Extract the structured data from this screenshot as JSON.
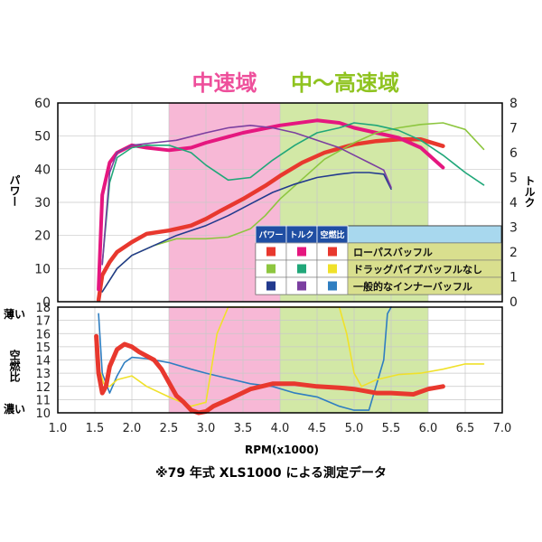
{
  "chart_data": {
    "type": "line",
    "regions": [
      {
        "label": "中速域",
        "from": 2.5,
        "to": 4.0,
        "color": "#f7b8d6",
        "label_color": "#ee4f9b"
      },
      {
        "label": "中〜高速域",
        "from": 4.0,
        "to": 6.0,
        "color": "#d2e8a6",
        "label_color": "#8fc31f"
      }
    ],
    "top_panel": {
      "ylabel": "パワー",
      "y2label": "トルク",
      "ylim": [
        0,
        60
      ],
      "y2lim": [
        0,
        8
      ],
      "yticks": [
        "0",
        "10",
        "20",
        "30",
        "40",
        "50",
        "60"
      ],
      "y2ticks": [
        "0",
        "1",
        "2",
        "3",
        "4",
        "5",
        "6",
        "7",
        "8"
      ],
      "series": [
        {
          "kind": "power",
          "axis": "left",
          "color": "#e8382e",
          "width": 4.5,
          "x": [
            1.55,
            1.6,
            1.7,
            1.8,
            2.0,
            2.2,
            2.5,
            2.8,
            3.0,
            3.2,
            3.5,
            3.8,
            4.0,
            4.3,
            4.6,
            5.0,
            5.3,
            5.6,
            5.9,
            6.2
          ],
          "values": [
            0.5,
            8,
            12,
            15,
            18,
            20.5,
            21.5,
            23,
            25,
            27.5,
            31,
            35,
            38,
            42,
            45,
            47.5,
            48.5,
            49,
            49,
            47
          ]
        },
        {
          "kind": "torque",
          "axis": "right",
          "color": "#e5177f",
          "width": 4,
          "x": [
            1.55,
            1.6,
            1.7,
            1.8,
            2.0,
            2.2,
            2.5,
            2.8,
            3.0,
            3.5,
            4.0,
            4.5,
            4.8,
            5.0,
            5.3,
            5.6,
            5.9,
            6.2
          ],
          "values": [
            0.5,
            4.3,
            5.6,
            6.0,
            6.3,
            6.2,
            6.1,
            6.2,
            6.4,
            6.8,
            7.1,
            7.3,
            7.2,
            7.0,
            6.8,
            6.6,
            6.2,
            5.4
          ]
        },
        {
          "kind": "power",
          "axis": "left",
          "color": "#8dc63f",
          "width": 1.6,
          "x": [
            1.6,
            1.8,
            2.0,
            2.3,
            2.6,
            3.0,
            3.3,
            3.6,
            3.8,
            4.0,
            4.3,
            4.6,
            5.0,
            5.3,
            5.6,
            5.9,
            6.2,
            6.5,
            6.75
          ],
          "values": [
            3,
            10,
            14,
            17,
            19,
            19,
            19.5,
            22,
            26,
            31,
            37,
            43,
            48,
            51,
            52.5,
            53.5,
            54,
            52,
            46
          ]
        },
        {
          "kind": "torque",
          "axis": "right",
          "color": "#20a779",
          "width": 1.6,
          "x": [
            1.6,
            1.7,
            1.8,
            2.0,
            2.2,
            2.5,
            2.8,
            3.0,
            3.3,
            3.6,
            3.9,
            4.2,
            4.5,
            4.8,
            5.0,
            5.3,
            5.6,
            5.9,
            6.2,
            6.5,
            6.75
          ],
          "values": [
            1.5,
            4.8,
            5.8,
            6.2,
            6.3,
            6.3,
            6.0,
            5.5,
            4.9,
            5.0,
            5.7,
            6.3,
            6.8,
            7.0,
            7.2,
            7.1,
            6.9,
            6.5,
            5.9,
            5.2,
            4.7
          ]
        },
        {
          "kind": "power",
          "axis": "left",
          "color": "#223a8e",
          "width": 1.6,
          "x": [
            1.6,
            1.8,
            2.0,
            2.3,
            2.6,
            3.0,
            3.3,
            3.6,
            3.9,
            4.2,
            4.5,
            4.8,
            5.0,
            5.2,
            5.4,
            5.5
          ],
          "values": [
            3,
            10,
            14,
            17,
            20,
            23,
            26,
            29.5,
            33,
            35.5,
            37.5,
            38.5,
            39,
            39,
            38.5,
            34
          ]
        },
        {
          "kind": "torque",
          "axis": "right",
          "color": "#7b3fa0",
          "width": 1.6,
          "x": [
            1.6,
            1.7,
            1.8,
            2.0,
            2.3,
            2.6,
            3.0,
            3.3,
            3.6,
            3.9,
            4.2,
            4.5,
            4.8,
            5.0,
            5.2,
            5.4,
            5.5
          ],
          "values": [
            1.5,
            5.2,
            6.0,
            6.3,
            6.4,
            6.5,
            6.8,
            7.0,
            7.1,
            7.0,
            6.8,
            6.5,
            6.2,
            5.9,
            5.6,
            5.3,
            4.6
          ]
        }
      ],
      "legend": {
        "headers": [
          "パワー",
          "トルク",
          "空燃比"
        ],
        "rows": [
          {
            "label": "ローパスバッフル",
            "power": "#e8382e",
            "torque": "#e5177f",
            "afr": "#e8382e"
          },
          {
            "label": "ドラッグパイプバッフルなし",
            "power": "#8dc63f",
            "torque": "#20a779",
            "afr": "#f0e12a"
          },
          {
            "label": "一般的なインナーバッフル",
            "power": "#223a8e",
            "torque": "#7b3fa0",
            "afr": "#2f7ec1"
          }
        ]
      }
    },
    "bottom_panel": {
      "ylabel": "空燃比",
      "top_label": "薄い",
      "bottom_label": "濃い",
      "ylim": [
        10,
        18
      ],
      "yticks": [
        "10",
        "11",
        "12",
        "13",
        "14",
        "15",
        "16",
        "17",
        "18"
      ],
      "series": [
        {
          "color": "#e8382e",
          "width": 5,
          "x": [
            1.52,
            1.55,
            1.6,
            1.65,
            1.7,
            1.8,
            1.9,
            2.0,
            2.1,
            2.2,
            2.3,
            2.4,
            2.5,
            2.6,
            2.7,
            2.8,
            2.9,
            3.0,
            3.1,
            3.3,
            3.6,
            3.9,
            4.2,
            4.5,
            4.8,
            5.0,
            5.3,
            5.5,
            5.8,
            6.0,
            6.2
          ],
          "values": [
            15.8,
            13.0,
            11.5,
            12.0,
            13.5,
            14.8,
            15.2,
            15.0,
            14.6,
            14.3,
            14.0,
            13.3,
            12.3,
            11.3,
            10.8,
            10.2,
            10.0,
            10.1,
            10.5,
            11.0,
            11.8,
            12.2,
            12.2,
            12.0,
            11.9,
            11.8,
            11.5,
            11.5,
            11.4,
            11.8,
            12.0
          ]
        },
        {
          "color": "#f0e12a",
          "width": 1.6,
          "x": [
            1.58,
            1.62,
            1.7,
            1.8,
            2.0,
            2.2,
            2.5,
            2.8,
            3.0,
            3.15,
            3.3,
            3.6,
            4.0,
            4.4,
            4.8,
            4.9,
            5.0,
            5.1,
            5.3,
            5.6,
            5.9,
            6.2,
            6.5,
            6.75
          ],
          "values": [
            13.0,
            12.2,
            12.0,
            12.5,
            12.8,
            12.0,
            11.2,
            10.5,
            10.8,
            16.0,
            18.0,
            18.0,
            18.0,
            18.0,
            18.0,
            16.0,
            13.0,
            12.0,
            12.5,
            12.9,
            13.0,
            13.3,
            13.7,
            13.7
          ]
        },
        {
          "color": "#2f7ec1",
          "width": 1.6,
          "x": [
            1.55,
            1.6,
            1.7,
            1.8,
            1.9,
            2.0,
            2.2,
            2.5,
            2.8,
            3.0,
            3.3,
            3.6,
            3.9,
            4.2,
            4.5,
            4.8,
            5.0,
            5.2,
            5.4,
            5.45,
            5.5
          ],
          "values": [
            17.5,
            13.0,
            11.5,
            12.8,
            13.8,
            14.2,
            14.1,
            13.8,
            13.3,
            13.0,
            12.6,
            12.2,
            12.0,
            11.5,
            11.2,
            10.5,
            10.2,
            10.2,
            14.0,
            17.5,
            18.0
          ]
        }
      ]
    },
    "x_axis": {
      "label": "RPM(x1000)",
      "ticks": [
        "1.0",
        "1.5",
        "2.0",
        "2.5",
        "3.0",
        "3.5",
        "4.0",
        "4.5",
        "5.0",
        "5.5",
        "6.0",
        "6.5",
        "7.0"
      ],
      "xlim": [
        1.0,
        7.0
      ]
    },
    "caption": "※79 年式 XLS1000 による測定データ"
  }
}
